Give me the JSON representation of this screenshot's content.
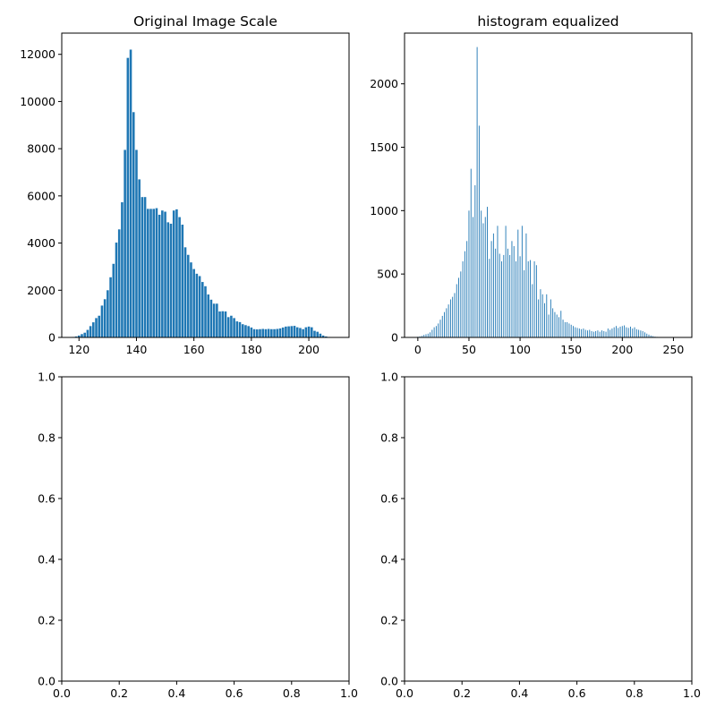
{
  "colors": {
    "bar": "#1f77b4",
    "axes": "#000000",
    "background": "#ffffff"
  },
  "chart_data": [
    {
      "type": "bar",
      "title": "Original Image Scale",
      "xlabel": "",
      "ylabel": "",
      "xlim": [
        114,
        214
      ],
      "ylim": [
        0,
        12900
      ],
      "bar_width": 0.8,
      "grid": false,
      "xticks": [
        120,
        140,
        160,
        180,
        200
      ],
      "yticks": [
        0,
        2000,
        4000,
        6000,
        8000,
        10000,
        12000
      ],
      "x": [
        118,
        119,
        120,
        121,
        122,
        123,
        124,
        125,
        126,
        127,
        128,
        129,
        130,
        131,
        132,
        133,
        134,
        135,
        136,
        137,
        138,
        139,
        140,
        141,
        142,
        143,
        144,
        145,
        146,
        147,
        148,
        149,
        150,
        151,
        152,
        153,
        154,
        155,
        156,
        157,
        158,
        159,
        160,
        161,
        162,
        163,
        164,
        165,
        166,
        167,
        168,
        169,
        170,
        171,
        172,
        173,
        174,
        175,
        176,
        177,
        178,
        179,
        180,
        181,
        182,
        183,
        184,
        185,
        186,
        187,
        188,
        189,
        190,
        191,
        192,
        193,
        194,
        195,
        196,
        197,
        198,
        199,
        200,
        201,
        202,
        203,
        204,
        205,
        206,
        207,
        208
      ],
      "values": [
        20,
        40,
        80,
        140,
        200,
        320,
        480,
        640,
        820,
        920,
        1350,
        1620,
        2000,
        2550,
        3120,
        4020,
        4580,
        5730,
        7950,
        11850,
        12200,
        9550,
        7950,
        6700,
        5950,
        5950,
        5450,
        5450,
        5450,
        5480,
        5200,
        5380,
        5330,
        4880,
        4820,
        5380,
        5430,
        5100,
        4780,
        3820,
        3500,
        3180,
        2900,
        2700,
        2600,
        2350,
        2170,
        1820,
        1600,
        1430,
        1430,
        1100,
        1110,
        1100,
        860,
        920,
        820,
        680,
        650,
        560,
        520,
        480,
        420,
        350,
        340,
        350,
        360,
        350,
        360,
        350,
        350,
        360,
        380,
        420,
        460,
        470,
        480,
        490,
        430,
        400,
        350,
        430,
        460,
        430,
        280,
        240,
        160,
        80,
        40,
        20,
        10
      ]
    },
    {
      "type": "bar",
      "title": "histogram equalized",
      "xlabel": "",
      "ylabel": "",
      "xlim": [
        -13,
        268
      ],
      "ylim": [
        0,
        2400
      ],
      "bar_width": 0.8,
      "grid": false,
      "xticks": [
        0,
        50,
        100,
        150,
        200,
        250
      ],
      "yticks": [
        0,
        500,
        1000,
        1500,
        2000
      ],
      "x": [
        0,
        2,
        4,
        6,
        8,
        10,
        12,
        14,
        16,
        18,
        20,
        22,
        24,
        26,
        28,
        30,
        32,
        34,
        36,
        38,
        40,
        42,
        44,
        46,
        48,
        50,
        52,
        54,
        56,
        58,
        60,
        62,
        64,
        66,
        68,
        70,
        72,
        74,
        76,
        78,
        80,
        82,
        84,
        86,
        88,
        90,
        92,
        94,
        96,
        98,
        100,
        102,
        104,
        106,
        108,
        110,
        112,
        114,
        116,
        118,
        120,
        122,
        124,
        126,
        128,
        130,
        132,
        134,
        136,
        138,
        140,
        142,
        144,
        146,
        148,
        150,
        152,
        154,
        156,
        158,
        160,
        162,
        164,
        166,
        168,
        170,
        172,
        174,
        176,
        178,
        180,
        182,
        184,
        186,
        188,
        190,
        192,
        194,
        196,
        198,
        200,
        202,
        204,
        206,
        208,
        210,
        212,
        214,
        216,
        218,
        220,
        222,
        224,
        226,
        228,
        230,
        232,
        234,
        236,
        238,
        240
      ],
      "values": [
        5,
        8,
        12,
        20,
        25,
        30,
        40,
        60,
        80,
        90,
        110,
        140,
        170,
        200,
        230,
        260,
        300,
        320,
        350,
        420,
        470,
        520,
        600,
        680,
        760,
        1000,
        1330,
        950,
        1200,
        2290,
        1670,
        1000,
        900,
        950,
        1030,
        620,
        760,
        820,
        700,
        880,
        660,
        600,
        650,
        880,
        700,
        650,
        760,
        720,
        600,
        850,
        640,
        880,
        530,
        820,
        600,
        610,
        420,
        600,
        570,
        300,
        380,
        340,
        270,
        340,
        180,
        300,
        230,
        200,
        180,
        160,
        210,
        140,
        120,
        120,
        110,
        100,
        90,
        80,
        75,
        70,
        65,
        70,
        60,
        55,
        60,
        50,
        45,
        50,
        55,
        45,
        55,
        50,
        45,
        70,
        60,
        70,
        80,
        90,
        75,
        85,
        90,
        95,
        80,
        75,
        85,
        70,
        80,
        65,
        60,
        55,
        50,
        40,
        30,
        22,
        15,
        10,
        6,
        4,
        3,
        2,
        1
      ]
    },
    {
      "type": "bar",
      "title": "",
      "xlabel": "",
      "ylabel": "",
      "xlim": [
        0,
        1
      ],
      "ylim": [
        0,
        1
      ],
      "grid": false,
      "xticks": [
        0.0,
        0.2,
        0.4,
        0.6,
        0.8,
        1.0
      ],
      "yticks": [
        0.0,
        0.2,
        0.4,
        0.6,
        0.8,
        1.0
      ],
      "x": [],
      "values": []
    },
    {
      "type": "bar",
      "title": "",
      "xlabel": "",
      "ylabel": "",
      "xlim": [
        0,
        1
      ],
      "ylim": [
        0,
        1
      ],
      "grid": false,
      "xticks": [
        0.0,
        0.2,
        0.4,
        0.6,
        0.8,
        1.0
      ],
      "yticks": [
        0.0,
        0.2,
        0.4,
        0.6,
        0.8,
        1.0
      ],
      "x": [],
      "values": []
    }
  ]
}
